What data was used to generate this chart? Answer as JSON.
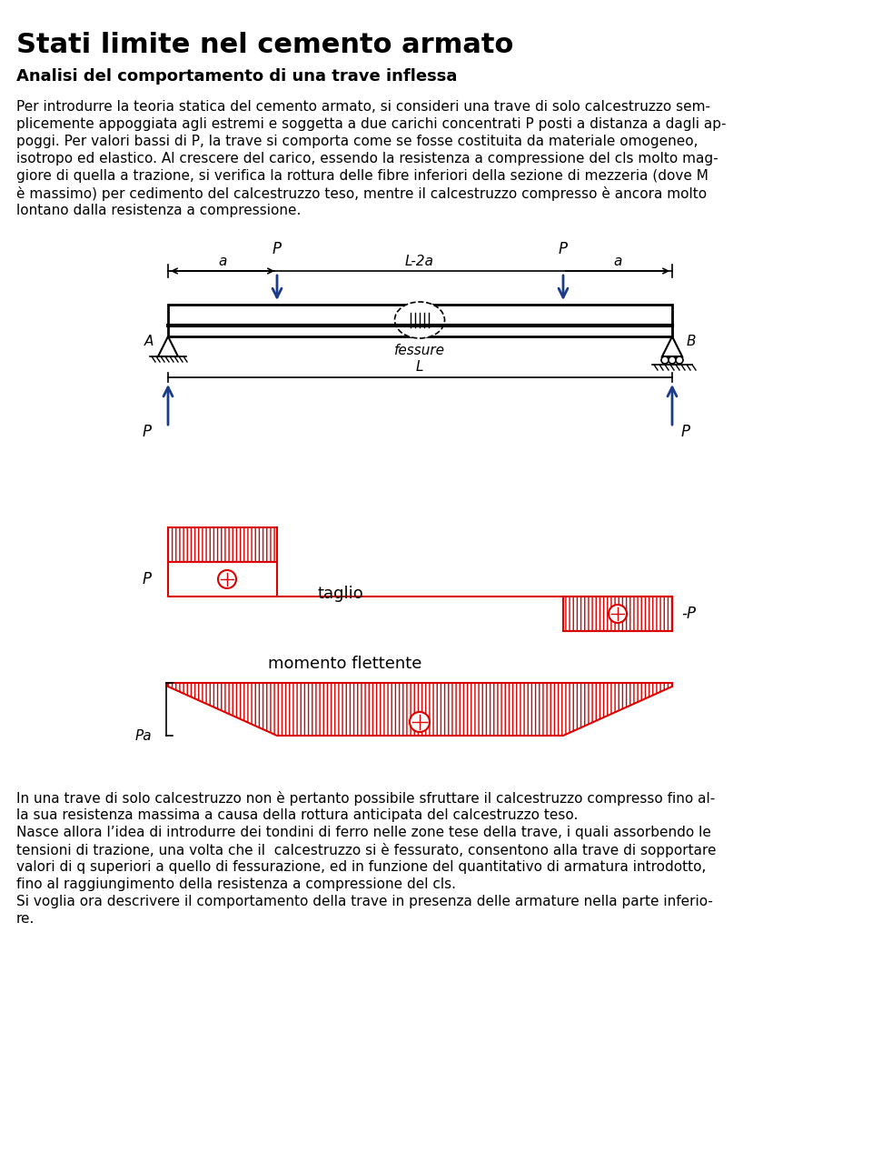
{
  "title": "Stati limite nel cemento armato",
  "subtitle": "Analisi del comportamento di una trave inflessa",
  "paragraph1": "Per introdurre la teoria statica del cemento armato, si consideri una trave di solo calcestruzzo sem-\nplicemente appoggiata agli estremi e soggetta a due carichi concentrati P posti a distanza a dagli ap-\npoggi. Per valori bassi di P, la trave si comporta come se fosse costituita da materiale omogeneo,\nisotropo ed elastico. Al crescere del carico, essendo la resistenza a compressione del cls molto mag-\ngiore di quella a trazione, si verifica la rottura delle fibre inferiori della sezione di mezzeria (dove M\nè massimo) per cedimento del calcestruzzo teso, mentre il calcestruzzo compresso è ancora molto\nlontano dalla resistenza a compressione.",
  "paragraph2": "In una trave di solo calcestruzzo non è pertanto possibile sfruttare il calcestruzzo compresso fino al-\nla sua resistenza massima a causa della rottura anticipata del calcestruzzo teso.\nNasce allora l’idea di introdurre dei tondini di ferro nelle zone tese della trave, i quali assorbendo le\ntensioni di trazione, una volta che il  calcestruzzo si è fessurato, consentono alla trave di sopportare\nvalori di q superiori a quello di fessurazione, ed in funzione del quantitativo di armatura introdotto,\nfino al raggiungimento della resistenza a compressione del cls.\nSi voglia ora descrivere il comportamento della trave in presenza delle armature nella parte inferio-\nre.",
  "bg_color": "#ffffff",
  "text_color": "#000000",
  "diagram_color": "#000000",
  "red_color": "#dd0000",
  "blue_color": "#1a3a8a"
}
